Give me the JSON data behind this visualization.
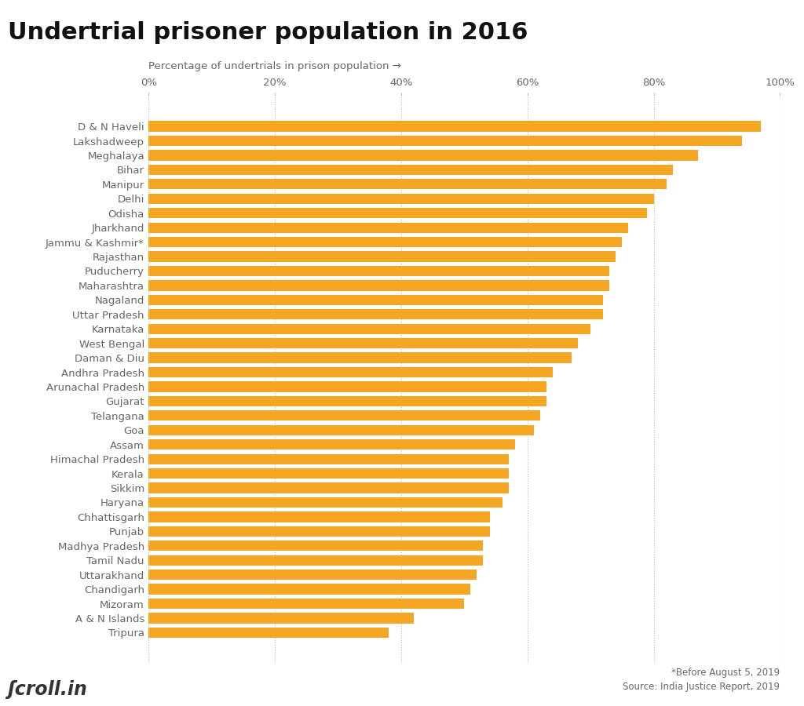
{
  "title": "Undertrial prisoner population in 2016",
  "xlabel": "Percentage of undertrials in prison population →",
  "bar_color": "#F5A623",
  "background_color": "#ffffff",
  "footnote1": "*Before August 5, 2019",
  "footnote2": "Source: India Justice Report, 2019",
  "categories": [
    "D & N Haveli",
    "Lakshadweep",
    "Meghalaya",
    "Bihar",
    "Manipur",
    "Delhi",
    "Odisha",
    "Jharkhand",
    "Jammu & Kashmir*",
    "Rajasthan",
    "Puducherry",
    "Maharashtra",
    "Nagaland",
    "Uttar Pradesh",
    "Karnataka",
    "West Bengal",
    "Daman & Diu",
    "Andhra Pradesh",
    "Arunachal Pradesh",
    "Gujarat",
    "Telangana",
    "Goa",
    "Assam",
    "Himachal Pradesh",
    "Kerala",
    "Sikkim",
    "Haryana",
    "Chhattisgarh",
    "Punjab",
    "Madhya Pradesh",
    "Tamil Nadu",
    "Uttarakhand",
    "Chandigarh",
    "Mizoram",
    "A & N Islands",
    "Tripura"
  ],
  "values": [
    97,
    94,
    87,
    83,
    82,
    80,
    79,
    76,
    75,
    74,
    73,
    73,
    72,
    72,
    70,
    68,
    67,
    64,
    63,
    63,
    62,
    61,
    58,
    57,
    57,
    57,
    56,
    54,
    54,
    53,
    53,
    52,
    51,
    50,
    42,
    38
  ],
  "xlim": [
    0,
    100
  ],
  "xticks": [
    0,
    20,
    40,
    60,
    80,
    100
  ],
  "xticklabels": [
    "0%",
    "20%",
    "40%",
    "60%",
    "80%",
    "100%"
  ],
  "grid_color": "#bbbbbb",
  "title_fontsize": 22,
  "label_fontsize": 9.5,
  "tick_fontsize": 9.5,
  "bar_height": 0.72,
  "label_color": "#666666",
  "title_color": "#111111",
  "footnote_fontsize": 8.5,
  "logo_fontsize": 17,
  "logo_color": "#333333"
}
